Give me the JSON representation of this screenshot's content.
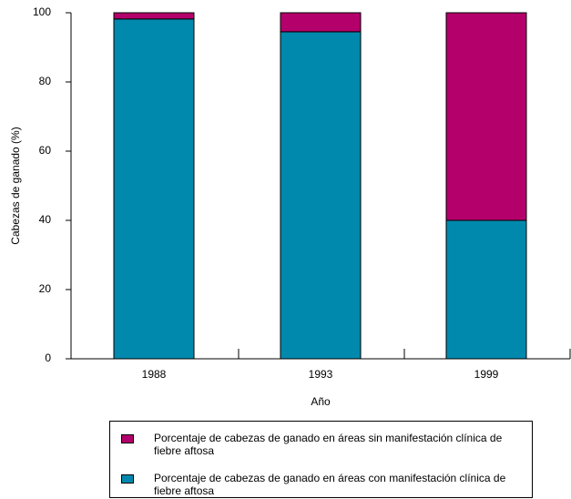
{
  "chart_data": {
    "type": "stacked_bar",
    "categories": [
      "1988",
      "1993",
      "1999"
    ],
    "series": [
      {
        "name": "Porcentaje de cabezas de ganado en áreas con manifestación clínica de fiebre aftosa",
        "color": "#0089ad",
        "values": [
          98.2,
          94.5,
          40
        ]
      },
      {
        "name": "Porcentaje de cabezas de ganado en áreas sin manifestación clínica de fiebre aftosa",
        "color": "#b3006b",
        "values": [
          1.8,
          5.5,
          60
        ]
      }
    ],
    "xlabel": "Año",
    "ylabel": "Cabezas de ganado (%)",
    "ylim": [
      0,
      100
    ],
    "yticks": [
      0,
      20,
      40,
      60,
      80,
      100
    ],
    "grid": false
  }
}
